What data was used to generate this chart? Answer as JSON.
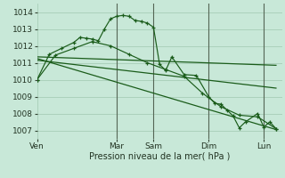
{
  "background_color": "#c8e8d8",
  "grid_color": "#a0c8b0",
  "line_color": "#1a5c1a",
  "xlabel": "Pression niveau de la mer( hPa )",
  "ylim": [
    1006.5,
    1014.5
  ],
  "yticks": [
    1007,
    1008,
    1009,
    1010,
    1011,
    1012,
    1013,
    1014
  ],
  "x_day_labels": [
    "Ven",
    "Mar",
    "Sam",
    "Dim",
    "Lun"
  ],
  "x_day_positions": [
    0,
    13,
    19,
    28,
    37
  ],
  "xlim": [
    0,
    40
  ],
  "series1_x": [
    0,
    2,
    4,
    6,
    7,
    8,
    9,
    10,
    11,
    12,
    13,
    14,
    15,
    16,
    17,
    18,
    19,
    20,
    21,
    22,
    24,
    26,
    28,
    29,
    30,
    31,
    32,
    33,
    34,
    36,
    37,
    38,
    39
  ],
  "series1_y": [
    1010.0,
    1011.5,
    1011.85,
    1012.2,
    1012.5,
    1012.45,
    1012.4,
    1012.3,
    1013.0,
    1013.6,
    1013.75,
    1013.8,
    1013.75,
    1013.5,
    1013.45,
    1013.35,
    1013.1,
    1010.9,
    1010.55,
    1011.35,
    1010.3,
    1010.25,
    1009.0,
    1008.6,
    1008.55,
    1008.2,
    1007.85,
    1007.15,
    1007.5,
    1008.0,
    1007.2,
    1007.5,
    1007.1
  ],
  "series2_x": [
    0,
    3,
    6,
    9,
    12,
    15,
    18,
    21,
    24,
    27,
    30,
    33,
    36,
    39
  ],
  "series2_y": [
    1010.0,
    1011.45,
    1011.85,
    1012.25,
    1012.0,
    1011.5,
    1011.0,
    1010.6,
    1010.2,
    1009.2,
    1008.4,
    1007.9,
    1007.8,
    1007.1
  ],
  "trend1_x": [
    0,
    39
  ],
  "trend1_y": [
    1011.35,
    1010.85
  ],
  "trend2_x": [
    0,
    39
  ],
  "trend2_y": [
    1011.25,
    1007.05
  ],
  "trend3_x": [
    0,
    39
  ],
  "trend3_y": [
    1011.15,
    1009.5
  ],
  "vlines_x": [
    13,
    19,
    28,
    37
  ],
  "vline_color": "#556655"
}
